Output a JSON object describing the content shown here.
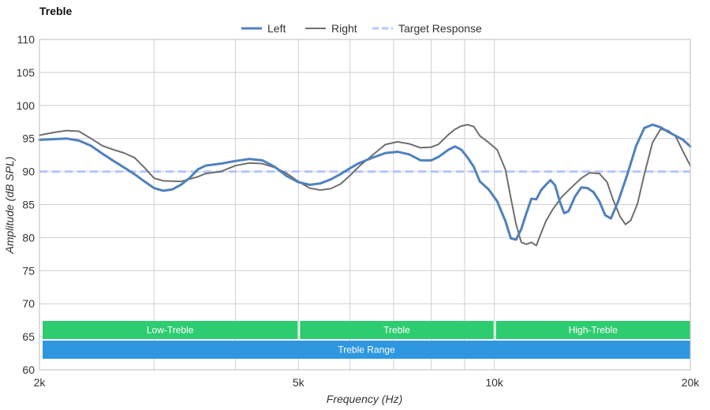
{
  "chart_data": {
    "type": "line",
    "title": "Treble",
    "xlabel": "Frequency (Hz)",
    "ylabel": "Amplitude (dB SPL)",
    "x_scale": "log",
    "xlim": [
      2000,
      20000
    ],
    "ylim": [
      60,
      110
    ],
    "x_ticks": [
      {
        "value": 2000,
        "label": "2k"
      },
      {
        "value": 5000,
        "label": "5k"
      },
      {
        "value": 10000,
        "label": "10k"
      },
      {
        "value": 20000,
        "label": "20k"
      }
    ],
    "x_gridlines": [
      2000,
      3000,
      4000,
      5000,
      6000,
      7000,
      8000,
      9000,
      10000,
      20000
    ],
    "y_ticks": [
      60,
      65,
      70,
      75,
      80,
      85,
      90,
      95,
      100,
      105,
      110
    ],
    "grid": true,
    "legend_position": "top-center",
    "series": [
      {
        "name": "Left",
        "color": "#4f81bd",
        "style": "solid-thick",
        "points": [
          [
            2000,
            94.8
          ],
          [
            2100,
            94.9
          ],
          [
            2200,
            95.0
          ],
          [
            2300,
            94.7
          ],
          [
            2400,
            93.9
          ],
          [
            2500,
            92.7
          ],
          [
            2600,
            91.6
          ],
          [
            2700,
            90.6
          ],
          [
            2800,
            89.6
          ],
          [
            2900,
            88.5
          ],
          [
            3000,
            87.5
          ],
          [
            3100,
            87.1
          ],
          [
            3200,
            87.3
          ],
          [
            3300,
            88.0
          ],
          [
            3400,
            89.0
          ],
          [
            3500,
            90.3
          ],
          [
            3600,
            90.9
          ],
          [
            3800,
            91.2
          ],
          [
            4000,
            91.6
          ],
          [
            4200,
            91.9
          ],
          [
            4400,
            91.7
          ],
          [
            4600,
            90.7
          ],
          [
            4800,
            89.3
          ],
          [
            5000,
            88.4
          ],
          [
            5200,
            88.0
          ],
          [
            5400,
            88.2
          ],
          [
            5600,
            88.8
          ],
          [
            5800,
            89.6
          ],
          [
            6000,
            90.5
          ],
          [
            6200,
            91.3
          ],
          [
            6500,
            92.1
          ],
          [
            6800,
            92.8
          ],
          [
            7100,
            93.0
          ],
          [
            7400,
            92.6
          ],
          [
            7700,
            91.7
          ],
          [
            8000,
            91.7
          ],
          [
            8200,
            92.2
          ],
          [
            8500,
            93.3
          ],
          [
            8700,
            93.8
          ],
          [
            8900,
            93.3
          ],
          [
            9100,
            92.1
          ],
          [
            9300,
            90.7
          ],
          [
            9500,
            88.5
          ],
          [
            9800,
            87.3
          ],
          [
            10100,
            85.5
          ],
          [
            10400,
            82.5
          ],
          [
            10600,
            79.9
          ],
          [
            10800,
            79.7
          ],
          [
            11000,
            81.3
          ],
          [
            11200,
            83.7
          ],
          [
            11400,
            85.9
          ],
          [
            11600,
            85.8
          ],
          [
            11800,
            87.2
          ],
          [
            12000,
            88.0
          ],
          [
            12200,
            88.7
          ],
          [
            12400,
            87.9
          ],
          [
            12600,
            85.5
          ],
          [
            12800,
            83.7
          ],
          [
            13000,
            84.0
          ],
          [
            13300,
            86.2
          ],
          [
            13600,
            87.6
          ],
          [
            13900,
            87.5
          ],
          [
            14200,
            86.9
          ],
          [
            14500,
            85.5
          ],
          [
            14800,
            83.4
          ],
          [
            15100,
            82.9
          ],
          [
            15500,
            85.5
          ],
          [
            16000,
            89.5
          ],
          [
            16500,
            93.8
          ],
          [
            17000,
            96.6
          ],
          [
            17500,
            97.1
          ],
          [
            18000,
            96.7
          ],
          [
            18500,
            96.0
          ],
          [
            19000,
            95.4
          ],
          [
            19500,
            94.8
          ],
          [
            20000,
            93.8
          ]
        ]
      },
      {
        "name": "Right",
        "color": "#6e6e6e",
        "style": "solid-thin",
        "points": [
          [
            2000,
            95.5
          ],
          [
            2100,
            95.9
          ],
          [
            2200,
            96.2
          ],
          [
            2300,
            96.1
          ],
          [
            2400,
            95.0
          ],
          [
            2500,
            93.9
          ],
          [
            2600,
            93.3
          ],
          [
            2700,
            92.8
          ],
          [
            2800,
            92.1
          ],
          [
            2900,
            90.6
          ],
          [
            3000,
            89.0
          ],
          [
            3100,
            88.6
          ],
          [
            3300,
            88.5
          ],
          [
            3500,
            89.2
          ],
          [
            3600,
            89.7
          ],
          [
            3800,
            90.0
          ],
          [
            4000,
            90.9
          ],
          [
            4200,
            91.3
          ],
          [
            4400,
            91.2
          ],
          [
            4600,
            90.6
          ],
          [
            4800,
            89.7
          ],
          [
            5000,
            88.5
          ],
          [
            5200,
            87.5
          ],
          [
            5400,
            87.2
          ],
          [
            5600,
            87.4
          ],
          [
            5800,
            88.1
          ],
          [
            6000,
            89.4
          ],
          [
            6200,
            90.8
          ],
          [
            6500,
            92.5
          ],
          [
            6800,
            94.1
          ],
          [
            7100,
            94.5
          ],
          [
            7400,
            94.2
          ],
          [
            7700,
            93.6
          ],
          [
            8000,
            93.7
          ],
          [
            8200,
            94.1
          ],
          [
            8500,
            95.6
          ],
          [
            8700,
            96.4
          ],
          [
            8900,
            96.9
          ],
          [
            9100,
            97.1
          ],
          [
            9300,
            96.8
          ],
          [
            9500,
            95.4
          ],
          [
            9800,
            94.4
          ],
          [
            10100,
            93.3
          ],
          [
            10400,
            90.3
          ],
          [
            10600,
            86.0
          ],
          [
            10800,
            82.0
          ],
          [
            11000,
            79.3
          ],
          [
            11200,
            79.0
          ],
          [
            11400,
            79.3
          ],
          [
            11600,
            78.8
          ],
          [
            11800,
            80.7
          ],
          [
            12000,
            82.5
          ],
          [
            12300,
            84.3
          ],
          [
            12700,
            86.2
          ],
          [
            13200,
            87.8
          ],
          [
            13600,
            89.0
          ],
          [
            14000,
            89.8
          ],
          [
            14500,
            89.7
          ],
          [
            14900,
            88.4
          ],
          [
            15200,
            85.9
          ],
          [
            15600,
            83.2
          ],
          [
            15900,
            82.0
          ],
          [
            16200,
            82.6
          ],
          [
            16600,
            85.2
          ],
          [
            17000,
            89.6
          ],
          [
            17500,
            94.4
          ],
          [
            18000,
            96.4
          ],
          [
            18500,
            96.2
          ],
          [
            19000,
            95.3
          ],
          [
            19500,
            93.0
          ],
          [
            20000,
            90.9
          ]
        ]
      },
      {
        "name": "Target Response",
        "color": "#b3c6ff",
        "style": "dashed",
        "points": [
          [
            2000,
            90.0
          ],
          [
            20000,
            90.0
          ]
        ]
      }
    ],
    "bands": [
      {
        "label": "Low-Treble",
        "from": 2000,
        "to": 5000,
        "row": 1,
        "color": "#2ecc71"
      },
      {
        "label": "Treble",
        "from": 5000,
        "to": 10000,
        "row": 1,
        "color": "#2ecc71"
      },
      {
        "label": "High-Treble",
        "from": 10000,
        "to": 20000,
        "row": 1,
        "color": "#2ecc71"
      },
      {
        "label": "Treble Range",
        "from": 2000,
        "to": 20000,
        "row": 2,
        "color": "#2e97e0"
      }
    ]
  }
}
